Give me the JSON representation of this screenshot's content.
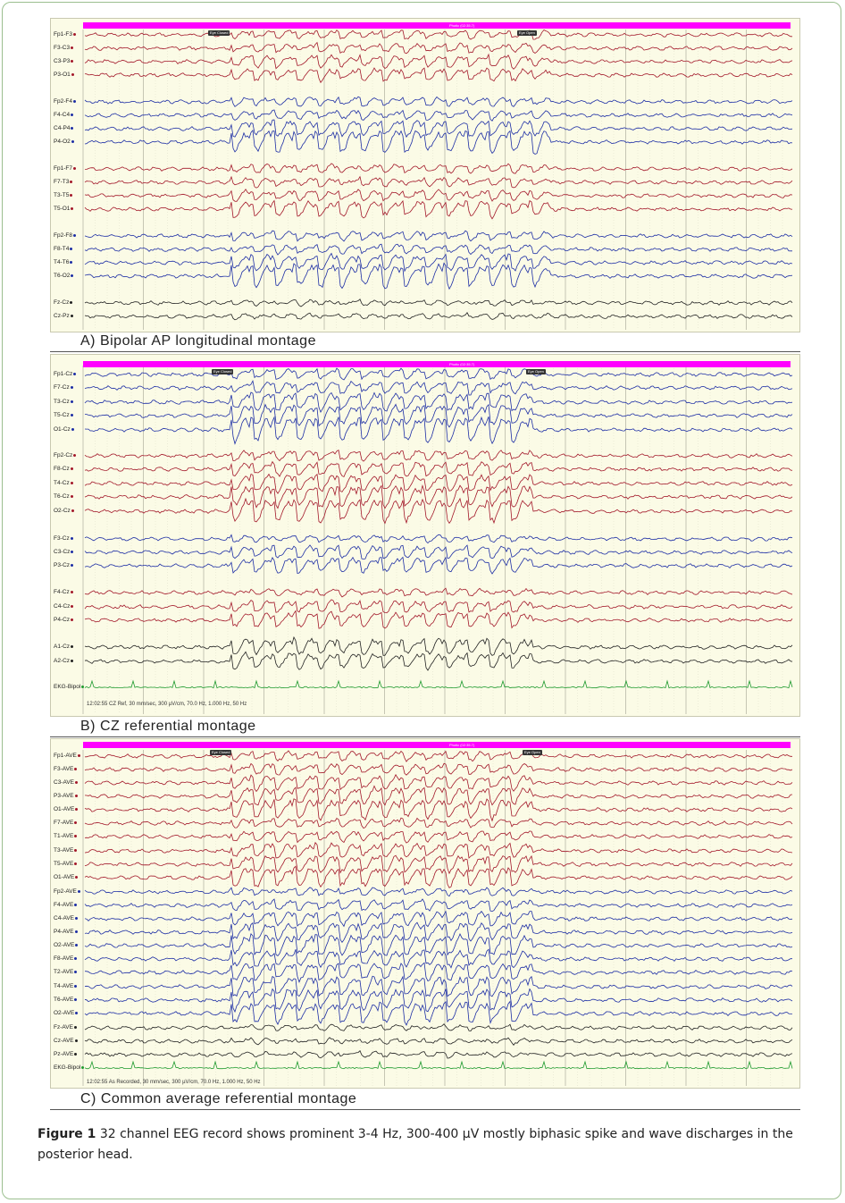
{
  "panels": [
    {
      "id": "A",
      "caption": "A)   Bipolar AP longitudinal montage",
      "bar_text": "Photic (02:35.7)",
      "markers": [
        "Eye Closed",
        "Eye Open"
      ],
      "footer": "",
      "channels": [
        {
          "label": "Fp1-F3",
          "color": "#a3182a"
        },
        {
          "label": "F3-C3",
          "color": "#a3182a"
        },
        {
          "label": "C3-P3",
          "color": "#a3182a"
        },
        {
          "label": "P3-O1",
          "color": "#a3182a"
        },
        {
          "label": "Fp2-F4",
          "color": "#1d2ea5"
        },
        {
          "label": "F4-C4",
          "color": "#1d2ea5"
        },
        {
          "label": "C4-P4",
          "color": "#1d2ea5"
        },
        {
          "label": "P4-O2",
          "color": "#1d2ea5"
        },
        {
          "label": "Fp1-F7",
          "color": "#a3182a"
        },
        {
          "label": "F7-T3",
          "color": "#a3182a"
        },
        {
          "label": "T3-T5",
          "color": "#a3182a"
        },
        {
          "label": "T5-O1",
          "color": "#a3182a"
        },
        {
          "label": "Fp2-F8",
          "color": "#1d2ea5"
        },
        {
          "label": "F8-T4",
          "color": "#1d2ea5"
        },
        {
          "label": "T4-T6",
          "color": "#1d2ea5"
        },
        {
          "label": "T6-O2",
          "color": "#1d2ea5"
        },
        {
          "label": "Fz-Cz",
          "color": "#222222"
        },
        {
          "label": "Cz-Pz",
          "color": "#222222"
        }
      ]
    },
    {
      "id": "B",
      "caption": "B)   CZ referential montage",
      "bar_text": "Photic (02:35.7)",
      "markers": [
        "Eye Closed",
        "Eye Open"
      ],
      "footer": "12:02:55 CZ Ref, 30 mm/sec, 300 µV/cm, 70.0 Hz, 1.000 Hz, 50 Hz",
      "channels": [
        {
          "label": "Fp1-Cz",
          "color": "#1d2ea5"
        },
        {
          "label": "F7-Cz",
          "color": "#1d2ea5"
        },
        {
          "label": "T3-Cz",
          "color": "#1d2ea5"
        },
        {
          "label": "T5-Cz",
          "color": "#1d2ea5"
        },
        {
          "label": "O1-Cz",
          "color": "#1d2ea5"
        },
        {
          "label": "Fp2-Cz",
          "color": "#a3182a"
        },
        {
          "label": "F8-Cz",
          "color": "#a3182a"
        },
        {
          "label": "T4-Cz",
          "color": "#a3182a"
        },
        {
          "label": "T6-Cz",
          "color": "#a3182a"
        },
        {
          "label": "O2-Cz",
          "color": "#a3182a"
        },
        {
          "label": "F3-Cz",
          "color": "#1d2ea5"
        },
        {
          "label": "C3-Cz",
          "color": "#1d2ea5"
        },
        {
          "label": "P3-Cz",
          "color": "#1d2ea5"
        },
        {
          "label": "F4-Cz",
          "color": "#a3182a"
        },
        {
          "label": "C4-Cz",
          "color": "#a3182a"
        },
        {
          "label": "P4-Cz",
          "color": "#a3182a"
        },
        {
          "label": "A1-Cz",
          "color": "#222222"
        },
        {
          "label": "A2-Cz",
          "color": "#222222"
        },
        {
          "label": "EKG-Bipol",
          "color": "#1e9a2e"
        }
      ]
    },
    {
      "id": "C",
      "caption": "C)   Common average referential montage",
      "bar_text": "Photic (02:35.7)",
      "markers": [
        "Eye Closed",
        "Eye Open"
      ],
      "footer": "12:02:55 As Recorded, 30 mm/sec, 300 µV/cm, 70.0 Hz, 1.000 Hz, 50 Hz",
      "channels": [
        {
          "label": "Fp1-AVE",
          "color": "#a3182a"
        },
        {
          "label": "F3-AVE",
          "color": "#a3182a"
        },
        {
          "label": "C3-AVE",
          "color": "#a3182a"
        },
        {
          "label": "P3-AVE",
          "color": "#a3182a"
        },
        {
          "label": "O1-AVE",
          "color": "#a3182a"
        },
        {
          "label": "F7-AVE",
          "color": "#a3182a"
        },
        {
          "label": "T1-AVE",
          "color": "#a3182a"
        },
        {
          "label": "T3-AVE",
          "color": "#a3182a"
        },
        {
          "label": "T5-AVE",
          "color": "#a3182a"
        },
        {
          "label": "O1-AVE",
          "color": "#a3182a"
        },
        {
          "label": "Fp2-AVE",
          "color": "#1d2ea5"
        },
        {
          "label": "F4-AVE",
          "color": "#1d2ea5"
        },
        {
          "label": "C4-AVE",
          "color": "#1d2ea5"
        },
        {
          "label": "P4-AVE",
          "color": "#1d2ea5"
        },
        {
          "label": "O2-AVE",
          "color": "#1d2ea5"
        },
        {
          "label": "F8-AVE",
          "color": "#1d2ea5"
        },
        {
          "label": "T2-AVE",
          "color": "#1d2ea5"
        },
        {
          "label": "T4-AVE",
          "color": "#1d2ea5"
        },
        {
          "label": "T6-AVE",
          "color": "#1d2ea5"
        },
        {
          "label": "O2-AVE",
          "color": "#1d2ea5"
        },
        {
          "label": "Fz-AVE",
          "color": "#222222"
        },
        {
          "label": "Cz-AVE",
          "color": "#222222"
        },
        {
          "label": "Pz-AVE",
          "color": "#222222"
        },
        {
          "label": "EKG-Bipol",
          "color": "#1e9a2e"
        }
      ]
    }
  ],
  "figure_caption": {
    "label": "Figure 1",
    "text": "32 channel EEG record shows prominent 3-4 Hz, 300-400 µV mostly biphasic spike and wave discharges in the posterior head."
  }
}
